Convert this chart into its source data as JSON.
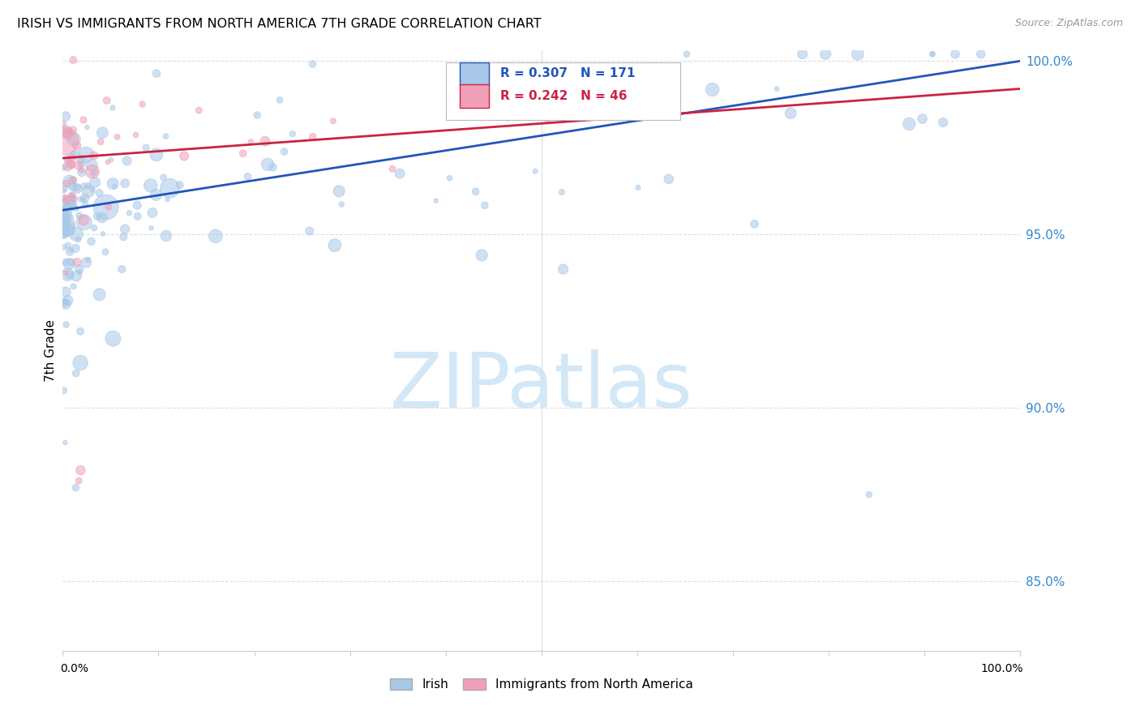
{
  "title": "IRISH VS IMMIGRANTS FROM NORTH AMERICA 7TH GRADE CORRELATION CHART",
  "source": "Source: ZipAtlas.com",
  "ylabel": "7th Grade",
  "legend_irish_label": "Irish",
  "legend_immna_label": "Immigrants from North America",
  "irish_color": "#a8c8e8",
  "immna_color": "#f0a0b8",
  "irish_line_color": "#2255bb",
  "immna_line_color": "#cc2244",
  "R_irish": 0.307,
  "N_irish": 171,
  "R_immna": 0.242,
  "N_immna": 46,
  "ymin": 0.83,
  "ymax": 1.003,
  "xmin": 0.0,
  "xmax": 1.0,
  "irish_trend_y0": 0.957,
  "irish_trend_y1": 1.0,
  "immna_trend_y0": 0.972,
  "immna_trend_y1": 0.992,
  "background_color": "#ffffff",
  "grid_color": "#dddddd",
  "yticks": [
    0.85,
    0.9,
    0.95,
    1.0
  ],
  "ytick_labels": [
    "85.0%",
    "90.0%",
    "95.0%",
    "100.0%"
  ],
  "watermark": "ZIPatlas",
  "watermark_color": "#cce4f5"
}
